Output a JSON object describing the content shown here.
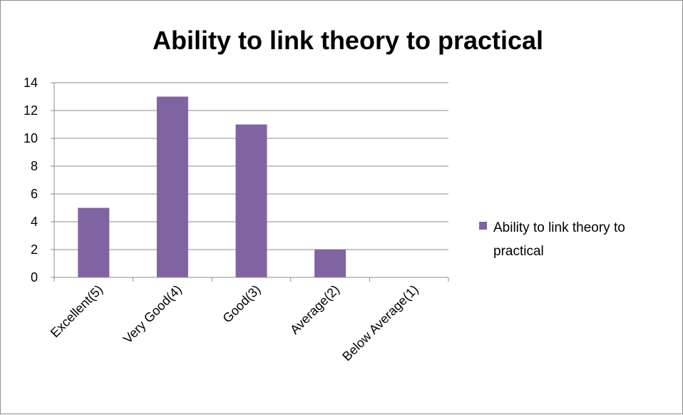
{
  "chart_data": {
    "type": "bar",
    "title": "Ability to link theory to practical",
    "xlabel": "",
    "ylabel": "",
    "categories": [
      "Excellent(5)",
      "Very Good(4)",
      "Good(3)",
      "Average(2)",
      "Below Average(1)"
    ],
    "series": [
      {
        "name": "Ability to link theory to practical",
        "values": [
          5,
          13,
          11,
          2,
          0
        ],
        "color": "#8064A2"
      }
    ],
    "ylim": [
      0,
      14
    ],
    "yticks": [
      "0",
      "2",
      "4",
      "6",
      "8",
      "10",
      "12",
      "14"
    ],
    "grid": true,
    "legend_position": "right",
    "legend_lines": [
      "Ability to link theory to",
      "practical"
    ]
  }
}
